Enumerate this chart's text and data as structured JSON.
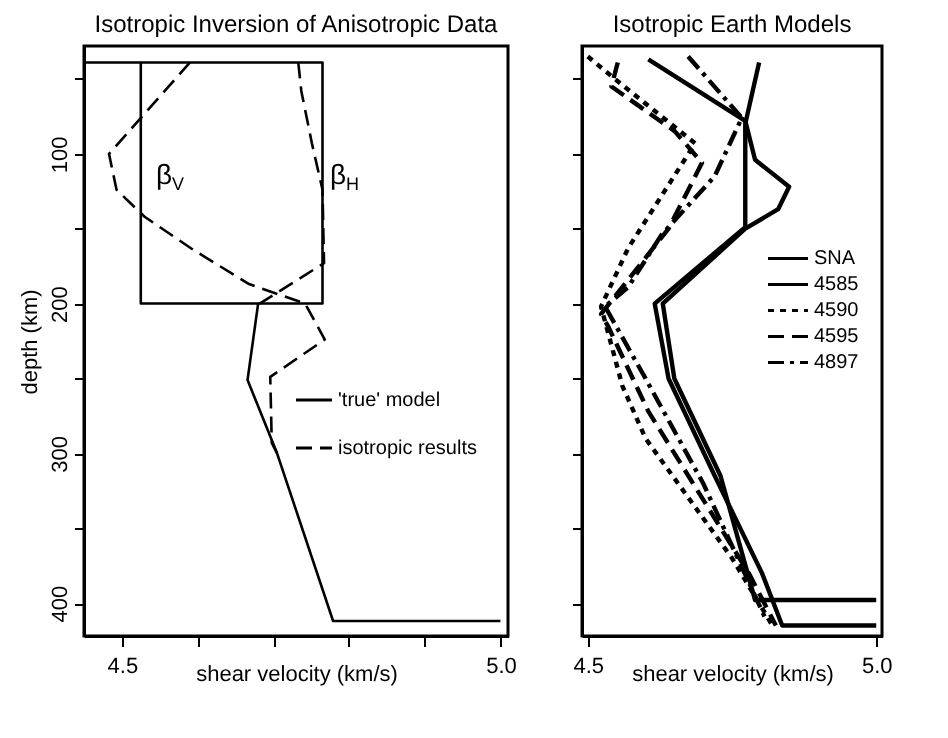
{
  "chart_data": [
    {
      "type": "line",
      "title": "Isotropic Inversion of Anisotropic Data",
      "xlabel": "shear velocity (km/s)",
      "ylabel": "depth (km)",
      "xlim": [
        4.45,
        5.01
      ],
      "ylim": [
        422,
        28
      ],
      "xticks": [
        4.5,
        {
          "value": 4.6,
          "label": null
        },
        {
          "value": 4.7,
          "label": null
        },
        {
          "value": 4.8,
          "label": null
        },
        {
          "value": 4.9,
          "label": null
        },
        {
          "value": 5,
          "label": "5.0"
        }
      ],
      "yticks": [
        {
          "value": 50,
          "label": null
        },
        100,
        {
          "value": 150,
          "label": null
        },
        200,
        {
          "value": 250,
          "label": null
        },
        300,
        {
          "value": 350,
          "label": null
        },
        400
      ],
      "grid": false,
      "legend": "right",
      "series": [
        {
          "name": "'true' model",
          "color": "#000000",
          "line_style": "solid",
          "x": [
            4.45,
            4.525,
            4.525,
            4.68,
            4.666,
            4.705,
            4.779,
            5.0
          ],
          "values": [
            39,
            39,
            200,
            200,
            251,
            300,
            412,
            412
          ]
        },
        {
          "color": "#000000",
          "line_style": "solid",
          "x": [
            4.525,
            4.765,
            4.765,
            4.68
          ],
          "values": [
            39,
            39,
            200,
            200
          ]
        },
        {
          "name": "isotropic results",
          "color": "#000000",
          "line_style": "dashed",
          "x": [
            4.59,
            4.483,
            4.493,
            4.53,
            4.594,
            4.668,
            4.742,
            4.768,
            4.696,
            4.698,
            4.705
          ],
          "values": [
            39,
            100,
            124,
            142,
            164,
            187,
            200,
            224,
            249,
            293,
            300
          ]
        },
        {
          "color": "#000000",
          "line_style": "dashed",
          "x": [
            4.733,
            4.737,
            4.751,
            4.765,
            4.767,
            4.723,
            4.682
          ],
          "values": [
            39,
            58,
            93,
            124,
            173,
            187,
            200
          ]
        }
      ],
      "annotations": [
        "β$_{V}$",
        "β$_{H}$"
      ]
    },
    {
      "type": "line",
      "title": "Isotropic Earth Models",
      "xlabel": "shear velocity (km/s)",
      "xlim": [
        4.49,
        5.01
      ],
      "ylim": [
        422,
        28
      ],
      "xticks": [
        4.5,
        {
          "value": 5,
          "label": "5.0"
        }
      ],
      "yticks": [
        {
          "value": 50,
          "label": null
        },
        {
          "value": 100,
          "label": null
        },
        {
          "value": 150,
          "label": null
        },
        {
          "value": 200,
          "label": null
        },
        {
          "value": 250,
          "label": null
        },
        {
          "value": 300,
          "label": null
        },
        {
          "value": 350,
          "label": null
        },
        {
          "value": 400,
          "label": null
        }
      ],
      "tick_labels": "x",
      "grid": false,
      "legend": "right",
      "series": [
        {
          "name": "SNA",
          "color": "#000000",
          "line_style": "solid",
          "x": [
            4.797,
            4.773,
            4.773,
            4.616,
            4.64,
            4.72,
            4.802,
            4.837,
            5.0
          ],
          "values": [
            39,
            80,
            149,
            200,
            250,
            315,
            380,
            415,
            415
          ]
        },
        {
          "name": "4585",
          "color": "#000000",
          "line_style": "solid",
          "x": [
            4.605,
            4.773,
            4.79,
            4.849,
            4.83,
            4.773,
            4.63,
            4.65,
            4.73,
            4.79,
            5.0
          ],
          "values": [
            37,
            78,
            104,
            122,
            137,
            150,
            200,
            250,
            315,
            398,
            398
          ]
        },
        {
          "name": "4590",
          "color": "#000000",
          "line_style": "dotted",
          "x": [
            4.5,
            4.547,
            4.686,
            4.57,
            4.523,
            4.56,
            4.6,
            4.75,
            4.82
          ],
          "values": [
            35,
            50,
            93,
            163,
            202,
            255,
            290,
            370,
            415
          ]
        },
        {
          "name": "4595",
          "color": "#000000",
          "line_style": "dashed",
          "x": [
            4.552,
            4.541,
            4.651,
            4.698,
            4.64,
            4.523,
            4.535,
            4.605,
            4.779,
            4.826
          ],
          "values": [
            39,
            55,
            85,
            106,
            150,
            207,
            215,
            272,
            380,
            415
          ]
        },
        {
          "name": "4897",
          "color": "#000000",
          "line_style": "dashdot",
          "x": [
            4.674,
            4.767,
            4.72,
            4.628,
            4.57,
            4.53,
            4.6,
            4.7,
            4.81
          ],
          "values": [
            35,
            76,
            115,
            154,
            189,
            202,
            250,
            320,
            412
          ]
        }
      ]
    }
  ]
}
